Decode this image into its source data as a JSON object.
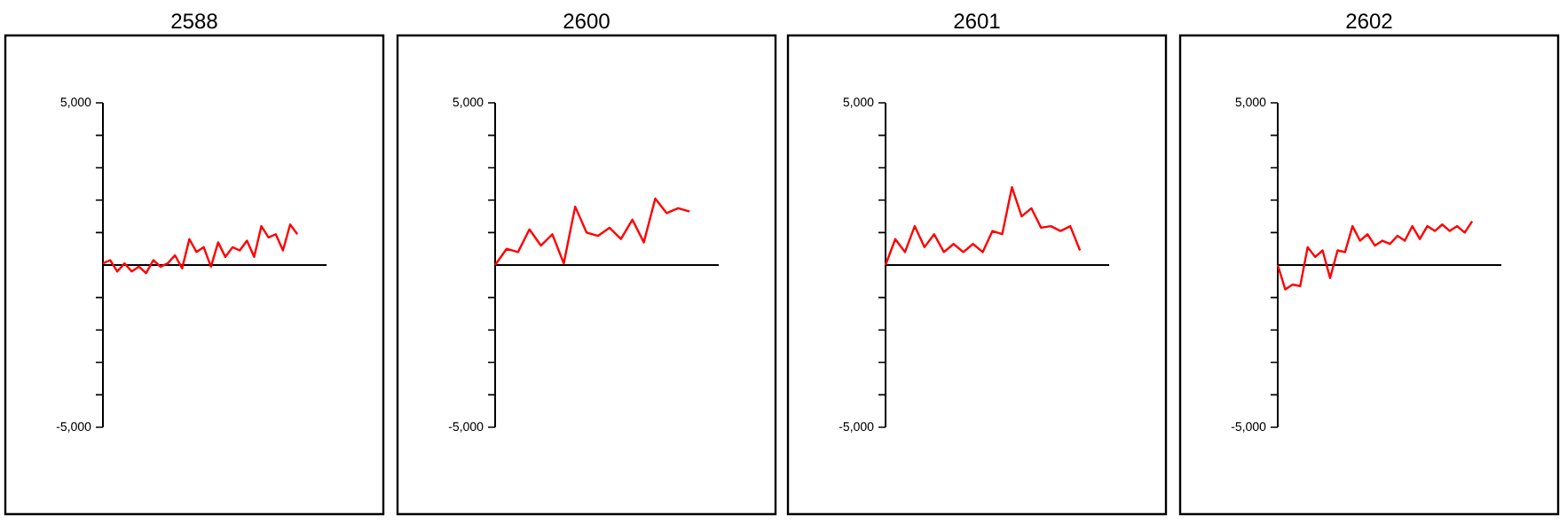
{
  "chart_data": [
    {
      "type": "line",
      "title": "2588",
      "categories": [
        null,
        null,
        null,
        null,
        null,
        null,
        null,
        null,
        null,
        null,
        null,
        null,
        null,
        null,
        null,
        null,
        null,
        null,
        null,
        null,
        null,
        null,
        null,
        null,
        null,
        null,
        null,
        null
      ],
      "values": [
        50,
        150,
        -200,
        50,
        -200,
        -50,
        -250,
        150,
        -50,
        50,
        300,
        -100,
        800,
        400,
        550,
        -50,
        700,
        250,
        550,
        450,
        750,
        250,
        1200,
        850,
        950,
        450,
        1250,
        950
      ],
      "color": "#ff0000",
      "ylim": [
        -5000,
        5000
      ],
      "yticks": [
        {
          "value": -5000,
          "label": "-5,000"
        },
        {
          "value": -4000,
          "label": null
        },
        {
          "value": -3000,
          "label": null
        },
        {
          "value": -2000,
          "label": null
        },
        {
          "value": -1000,
          "label": null
        },
        {
          "value": 0,
          "label": null
        },
        {
          "value": 1000,
          "label": null
        },
        {
          "value": 2000,
          "label": null
        },
        {
          "value": 3000,
          "label": null
        },
        {
          "value": 4000,
          "label": null
        },
        {
          "value": 5000,
          "label": "5,000"
        }
      ],
      "tick_labels": "y",
      "marker": "none"
    },
    {
      "type": "line",
      "title": "2600",
      "categories": [
        null,
        null,
        null,
        null,
        null,
        null,
        null,
        null,
        null,
        null,
        null,
        null,
        null,
        null,
        null,
        null,
        null,
        null
      ],
      "values": [
        0,
        500,
        400,
        1100,
        600,
        950,
        50,
        1800,
        1000,
        900,
        1150,
        800,
        1400,
        700,
        2050,
        1600,
        1750,
        1650
      ],
      "color": "#ff0000",
      "ylim": [
        -5000,
        5000
      ],
      "yticks": [
        {
          "value": -5000,
          "label": "-5,000"
        },
        {
          "value": -4000,
          "label": null
        },
        {
          "value": -3000,
          "label": null
        },
        {
          "value": -2000,
          "label": null
        },
        {
          "value": -1000,
          "label": null
        },
        {
          "value": 0,
          "label": null
        },
        {
          "value": 1000,
          "label": null
        },
        {
          "value": 2000,
          "label": null
        },
        {
          "value": 3000,
          "label": null
        },
        {
          "value": 4000,
          "label": null
        },
        {
          "value": 5000,
          "label": "5,000"
        }
      ],
      "tick_labels": "y",
      "marker": "none"
    },
    {
      "type": "line",
      "title": "2601",
      "categories": [
        null,
        null,
        null,
        null,
        null,
        null,
        null,
        null,
        null,
        null,
        null,
        null,
        null,
        null,
        null,
        null,
        null,
        null,
        null,
        null,
        null
      ],
      "values": [
        0,
        800,
        400,
        1200,
        550,
        950,
        400,
        650,
        400,
        650,
        400,
        1050,
        950,
        2400,
        1500,
        1750,
        1150,
        1200,
        1050,
        1200,
        450
      ],
      "color": "#ff0000",
      "ylim": [
        -5000,
        5000
      ],
      "yticks": [
        {
          "value": -5000,
          "label": "-5,000"
        },
        {
          "value": -4000,
          "label": null
        },
        {
          "value": -3000,
          "label": null
        },
        {
          "value": -2000,
          "label": null
        },
        {
          "value": -1000,
          "label": null
        },
        {
          "value": 0,
          "label": null
        },
        {
          "value": 1000,
          "label": null
        },
        {
          "value": 2000,
          "label": null
        },
        {
          "value": 3000,
          "label": null
        },
        {
          "value": 4000,
          "label": null
        },
        {
          "value": 5000,
          "label": "5,000"
        }
      ],
      "tick_labels": "y",
      "marker": "none"
    },
    {
      "type": "line",
      "title": "2602",
      "categories": [
        null,
        null,
        null,
        null,
        null,
        null,
        null,
        null,
        null,
        null,
        null,
        null,
        null,
        null,
        null,
        null,
        null,
        null,
        null,
        null,
        null,
        null,
        null,
        null,
        null,
        null,
        null
      ],
      "values": [
        0,
        -750,
        -600,
        -650,
        550,
        250,
        450,
        -400,
        450,
        400,
        1200,
        750,
        950,
        600,
        750,
        650,
        900,
        750,
        1200,
        800,
        1200,
        1050,
        1250,
        1050,
        1200,
        1000,
        1350
      ],
      "color": "#ff0000",
      "ylim": [
        -5000,
        5000
      ],
      "yticks": [
        {
          "value": -5000,
          "label": "-5,000"
        },
        {
          "value": -4000,
          "label": null
        },
        {
          "value": -3000,
          "label": null
        },
        {
          "value": -2000,
          "label": null
        },
        {
          "value": -1000,
          "label": null
        },
        {
          "value": 0,
          "label": null
        },
        {
          "value": 1000,
          "label": null
        },
        {
          "value": 2000,
          "label": null
        },
        {
          "value": 3000,
          "label": null
        },
        {
          "value": 4000,
          "label": null
        },
        {
          "value": 5000,
          "label": "5,000"
        }
      ],
      "tick_labels": "y",
      "marker": "none"
    }
  ]
}
